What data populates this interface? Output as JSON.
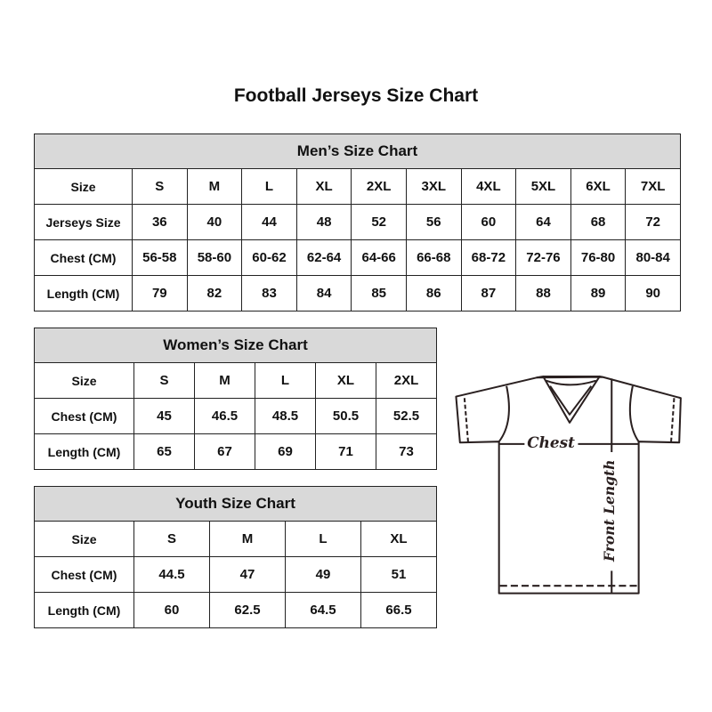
{
  "title": "Football Jerseys Size Chart",
  "men": {
    "caption": "Men’s Size Chart",
    "rows": [
      {
        "label": "Size",
        "values": [
          "S",
          "M",
          "L",
          "XL",
          "2XL",
          "3XL",
          "4XL",
          "5XL",
          "6XL",
          "7XL"
        ]
      },
      {
        "label": "Jerseys Size",
        "values": [
          "36",
          "40",
          "44",
          "48",
          "52",
          "56",
          "60",
          "64",
          "68",
          "72"
        ]
      },
      {
        "label": "Chest (CM)",
        "values": [
          "56-58",
          "58-60",
          "60-62",
          "62-64",
          "64-66",
          "66-68",
          "68-72",
          "72-76",
          "76-80",
          "80-84"
        ]
      },
      {
        "label": "Length (CM)",
        "values": [
          "79",
          "82",
          "83",
          "84",
          "85",
          "86",
          "87",
          "88",
          "89",
          "90"
        ]
      }
    ]
  },
  "women": {
    "caption": "Women’s Size Chart",
    "rows": [
      {
        "label": "Size",
        "values": [
          "S",
          "M",
          "L",
          "XL",
          "2XL"
        ]
      },
      {
        "label": "Chest (CM)",
        "values": [
          "45",
          "46.5",
          "48.5",
          "50.5",
          "52.5"
        ]
      },
      {
        "label": "Length (CM)",
        "values": [
          "65",
          "67",
          "69",
          "71",
          "73"
        ]
      }
    ]
  },
  "youth": {
    "caption": "Youth Size Chart",
    "rows": [
      {
        "label": "Size",
        "values": [
          "S",
          "M",
          "L",
          "XL"
        ]
      },
      {
        "label": "Chest (CM)",
        "values": [
          "44.5",
          "47",
          "49",
          "51"
        ]
      },
      {
        "label": "Length (CM)",
        "values": [
          "60",
          "62.5",
          "64.5",
          "66.5"
        ]
      }
    ]
  },
  "diagram": {
    "chest_label": "Chest",
    "length_label": "Front Length"
  },
  "colors": {
    "header_bg": "#d9d9d9",
    "border": "#222222"
  }
}
